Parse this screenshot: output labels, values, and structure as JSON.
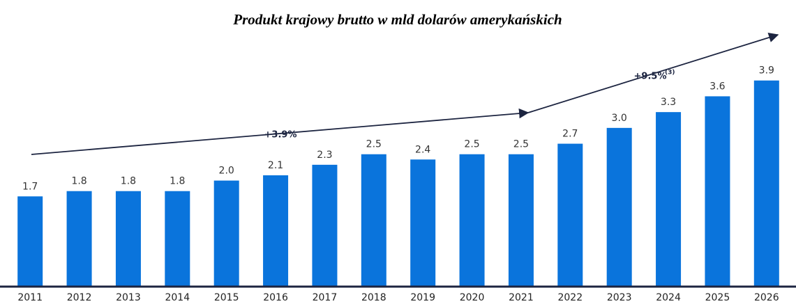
{
  "chart_data": {
    "type": "bar",
    "title": "Produkt krajowy brutto w mld dolarów amerykańskich",
    "categories": [
      "2011",
      "2012",
      "2013",
      "2014",
      "2015",
      "2016",
      "2017",
      "2018",
      "2019",
      "2020",
      "2021",
      "2022",
      "2023",
      "2024",
      "2025",
      "2026"
    ],
    "values": [
      1.7,
      1.8,
      1.8,
      1.8,
      2.0,
      2.1,
      2.3,
      2.5,
      2.4,
      2.5,
      2.5,
      2.7,
      3.0,
      3.3,
      3.6,
      3.9
    ],
    "value_labels": [
      "1.7",
      "1.8",
      "1.8",
      "1.8",
      "2.0",
      "2.1",
      "2.3",
      "2.5",
      "2.4",
      "2.5",
      "2.5",
      "2.7",
      "3.0",
      "3.3",
      "3.6",
      "3.9"
    ],
    "color": "#0a74dc",
    "ylim": [
      0,
      4.9
    ],
    "annotations": [
      {
        "text": "+3.9%"
      },
      {
        "text": "+9.5%",
        "note": "(3)"
      }
    ]
  }
}
